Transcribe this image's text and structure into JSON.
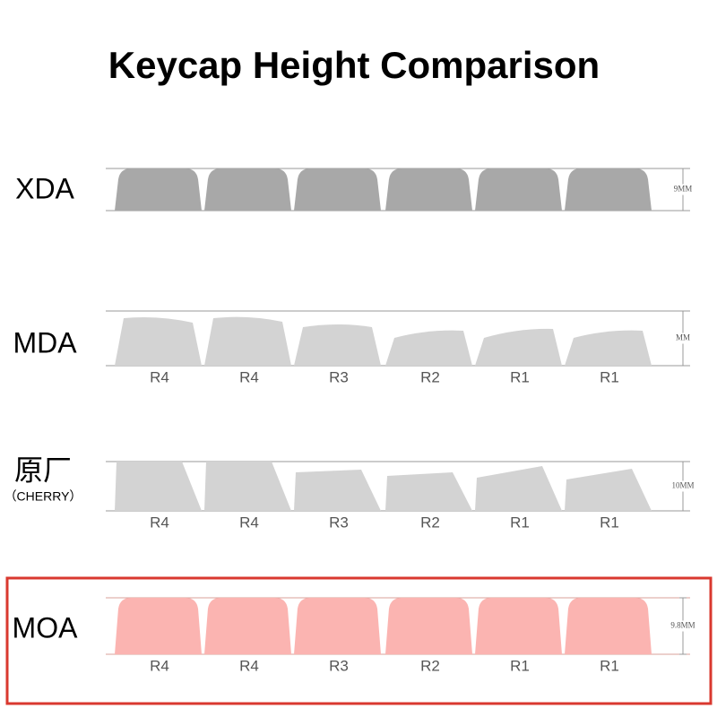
{
  "title": "Keycap Height Comparison",
  "profiles": [
    {
      "name": "XDA",
      "height": "9MM"
    },
    {
      "name": "MDA",
      "height": "MM",
      "rows": [
        "R4",
        "R4",
        "R3",
        "R2",
        "R1",
        "R1"
      ]
    },
    {
      "name": "原厂",
      "subname": "（CHERRY）",
      "height": "10MM",
      "rows": [
        "R4",
        "R4",
        "R3",
        "R2",
        "R1",
        "R1"
      ]
    },
    {
      "name": "MOA",
      "height": "9.8MM",
      "rows": [
        "R4",
        "R4",
        "R3",
        "R2",
        "R1",
        "R1"
      ]
    }
  ]
}
